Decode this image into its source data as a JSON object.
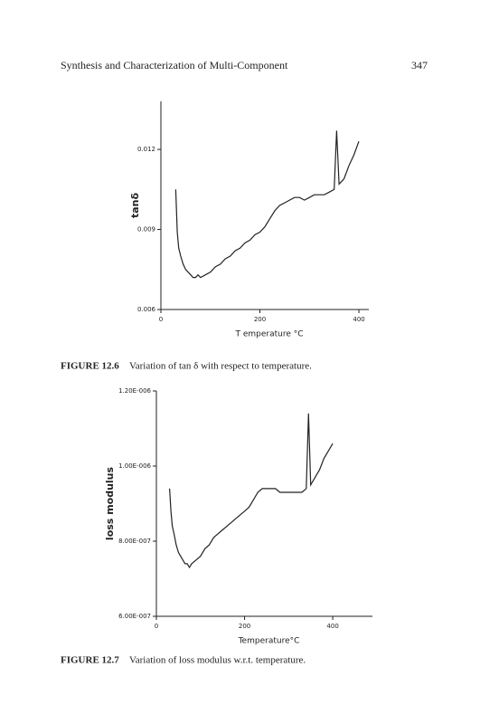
{
  "header": {
    "title": "Synthesis and Characterization of Multi-Component",
    "page": "347"
  },
  "chart_data": [
    {
      "type": "line",
      "ylabel": "tanδ",
      "xlabel": "T emperature °C",
      "color": "#222222",
      "caption_label": "FIGURE 12.6",
      "caption": "Variation of tan δ with respect to temperature.",
      "x": [
        30,
        33,
        36,
        40,
        45,
        50,
        55,
        60,
        65,
        70,
        75,
        80,
        90,
        100,
        110,
        120,
        130,
        140,
        150,
        160,
        170,
        180,
        190,
        200,
        210,
        220,
        230,
        240,
        250,
        260,
        270,
        280,
        290,
        300,
        310,
        320,
        330,
        340,
        350,
        355,
        360,
        370,
        380,
        390,
        400
      ],
      "values": [
        0.0105,
        0.0089,
        0.0083,
        0.008,
        0.0077,
        0.0075,
        0.0074,
        0.0073,
        0.0072,
        0.0072,
        0.0073,
        0.0072,
        0.0073,
        0.0074,
        0.0076,
        0.0077,
        0.0079,
        0.008,
        0.0082,
        0.0083,
        0.0085,
        0.0086,
        0.0088,
        0.0089,
        0.0091,
        0.0094,
        0.0097,
        0.0099,
        0.01,
        0.0101,
        0.0102,
        0.0102,
        0.0101,
        0.0102,
        0.0103,
        0.0103,
        0.0103,
        0.0104,
        0.0105,
        0.0127,
        0.0107,
        0.0109,
        0.0114,
        0.0118,
        0.0123
      ],
      "xlim": [
        0,
        420
      ],
      "ylim": [
        0.006,
        0.0138
      ],
      "xticks": [
        0,
        200,
        400
      ],
      "yticks": [
        0.006,
        0.009,
        0.012
      ]
    },
    {
      "type": "line",
      "ylabel": "loss modulus",
      "xlabel": "Temperature°C",
      "color": "#222222",
      "caption_label": "FIGURE 12.7",
      "caption": "Variation of loss modulus w.r.t. temperature.",
      "x": [
        30,
        33,
        36,
        40,
        45,
        50,
        55,
        60,
        65,
        70,
        75,
        80,
        90,
        100,
        110,
        120,
        130,
        140,
        150,
        160,
        170,
        180,
        190,
        200,
        210,
        220,
        230,
        240,
        250,
        260,
        270,
        280,
        290,
        300,
        310,
        320,
        330,
        340,
        345,
        350,
        360,
        370,
        380,
        390,
        400
      ],
      "values": [
        9.4e-07,
        8.8e-07,
        8.4e-07,
        8.2e-07,
        7.9e-07,
        7.7e-07,
        7.6e-07,
        7.5e-07,
        7.4e-07,
        7.4e-07,
        7.3e-07,
        7.4e-07,
        7.5e-07,
        7.6e-07,
        7.8e-07,
        7.9e-07,
        8.1e-07,
        8.2e-07,
        8.3e-07,
        8.4e-07,
        8.5e-07,
        8.6e-07,
        8.7e-07,
        8.8e-07,
        8.9e-07,
        9.1e-07,
        9.3e-07,
        9.4e-07,
        9.4e-07,
        9.4e-07,
        9.4e-07,
        9.3e-07,
        9.3e-07,
        9.3e-07,
        9.3e-07,
        9.3e-07,
        9.3e-07,
        9.4e-07,
        1.14e-06,
        9.5e-07,
        9.7e-07,
        9.9e-07,
        1.02e-06,
        1.04e-06,
        1.06e-06
      ],
      "xlim": [
        0,
        490
      ],
      "ylim": [
        6e-07,
        1.2e-06
      ],
      "xticks": [
        0,
        200,
        400
      ],
      "yticks": [
        {
          "value": 6e-07,
          "label": "6.00E-007"
        },
        {
          "value": 8e-07,
          "label": "8.00E-007"
        },
        {
          "value": 1e-06,
          "label": "1.00E-006"
        },
        {
          "value": 1.2e-06,
          "label": "1.20E-006"
        }
      ]
    }
  ]
}
